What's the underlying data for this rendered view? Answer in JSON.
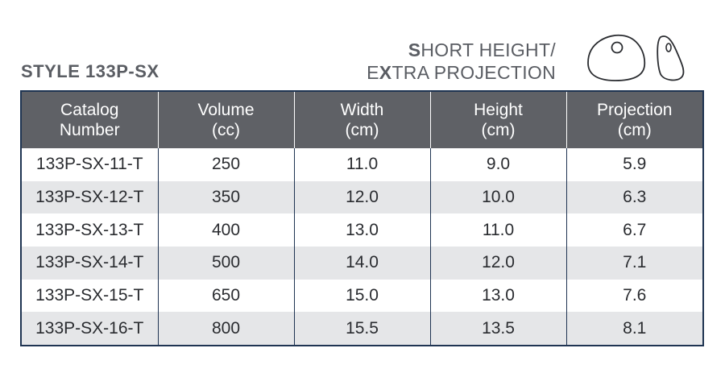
{
  "style_title": "STYLE 133P-SX",
  "subtitle": {
    "line1_cap": "S",
    "line1_rest": "HORT HEIGHT/",
    "line2_cap1": "E",
    "line2_x": "X",
    "line2_rest": "TRA PROJECTION"
  },
  "icons": {
    "front_view": "implant-front-view-icon",
    "side_view": "implant-side-view-icon"
  },
  "colors": {
    "header_bg": "#5f6166",
    "border": "#1f3452",
    "row_alt": "#e5e6e8",
    "title_text": "#5a5d63"
  },
  "table": {
    "headers": [
      {
        "line1": "Catalog",
        "line2": "Number"
      },
      {
        "line1": "Volume",
        "line2": "(cc)"
      },
      {
        "line1": "Width",
        "line2": "(cm)"
      },
      {
        "line1": "Height",
        "line2": "(cm)"
      },
      {
        "line1": "Projection",
        "line2": "(cm)"
      }
    ],
    "rows": [
      [
        "133P-SX-11-T",
        "250",
        "11.0",
        "9.0",
        "5.9"
      ],
      [
        "133P-SX-12-T",
        "350",
        "12.0",
        "10.0",
        "6.3"
      ],
      [
        "133P-SX-13-T",
        "400",
        "13.0",
        "11.0",
        "6.7"
      ],
      [
        "133P-SX-14-T",
        "500",
        "14.0",
        "12.0",
        "7.1"
      ],
      [
        "133P-SX-15-T",
        "650",
        "15.0",
        "13.0",
        "7.6"
      ],
      [
        "133P-SX-16-T",
        "800",
        "15.5",
        "13.5",
        "8.1"
      ]
    ]
  }
}
